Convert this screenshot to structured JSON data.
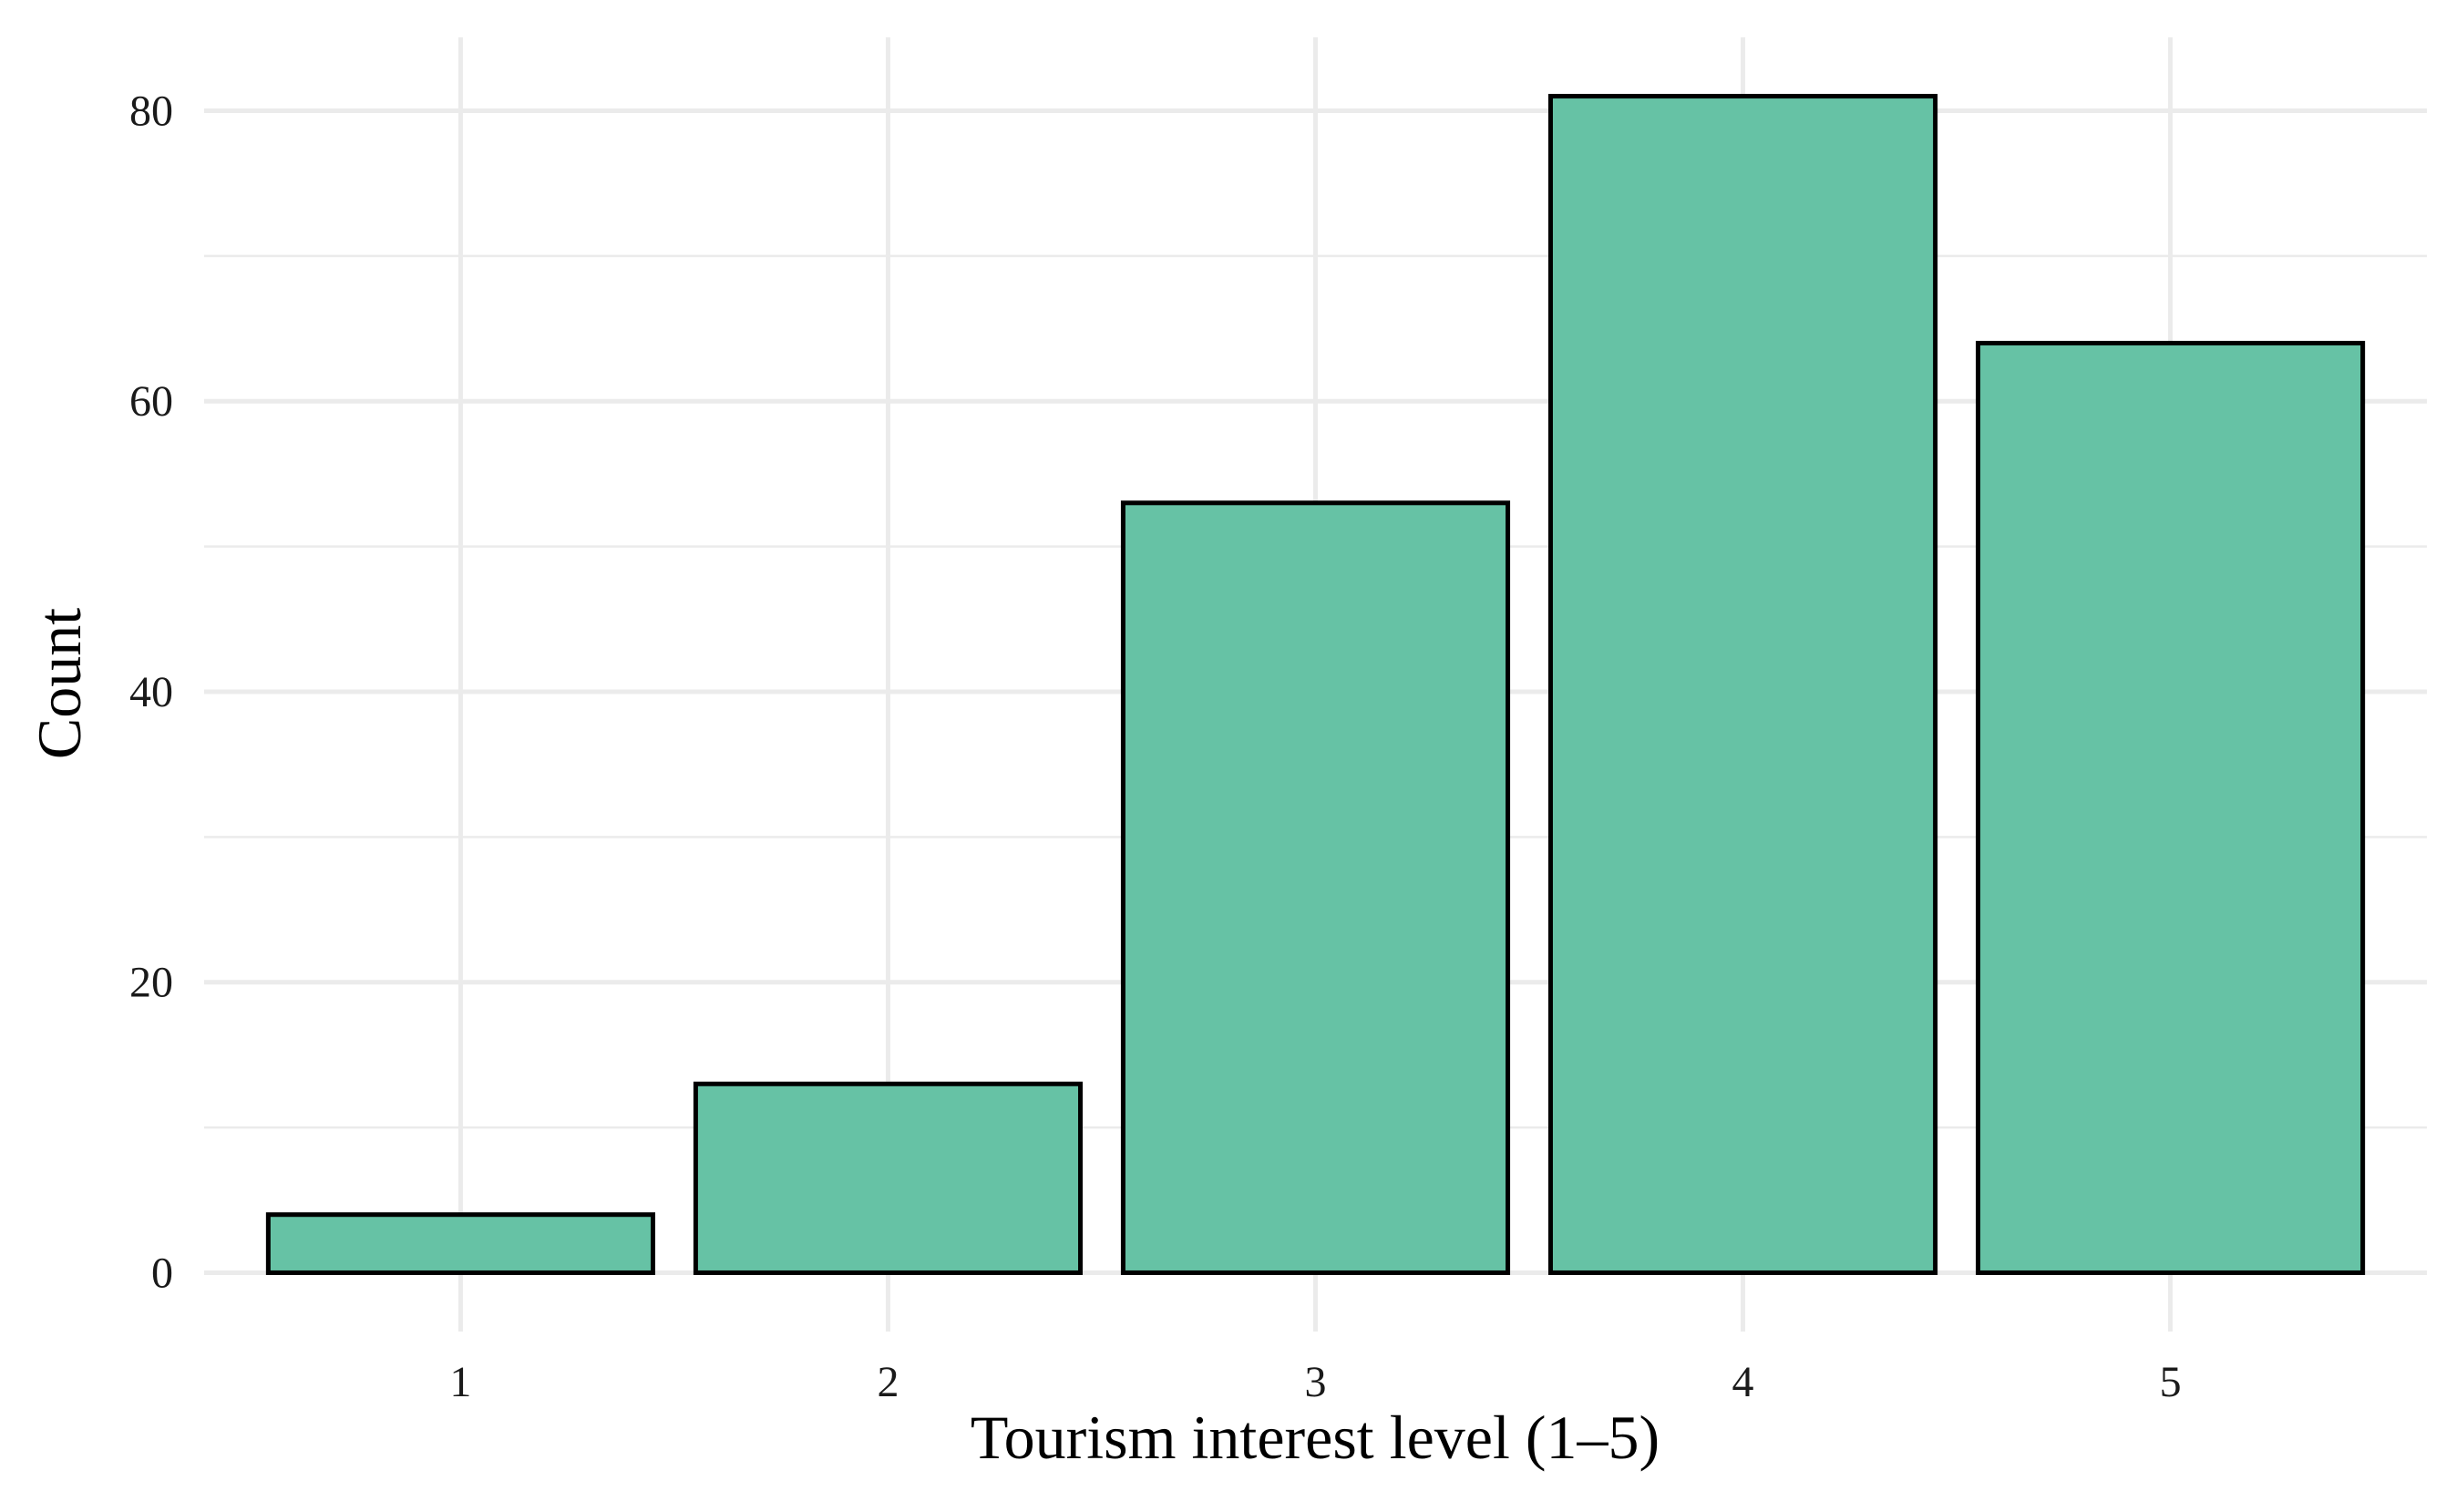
{
  "chart_data": {
    "type": "bar",
    "x_label": "Tourism interest level (1–5)",
    "y_label": "Count",
    "categories": [
      "1",
      "2",
      "3",
      "4",
      "5"
    ],
    "values": [
      4,
      13,
      53,
      81,
      64
    ],
    "color": "#66c2a5",
    "ylim": [
      -4.05,
      85.05
    ],
    "yticks": [
      0,
      20,
      40,
      60,
      80
    ],
    "minor_yticks": [
      10,
      30,
      50,
      70
    ],
    "grid": true
  }
}
